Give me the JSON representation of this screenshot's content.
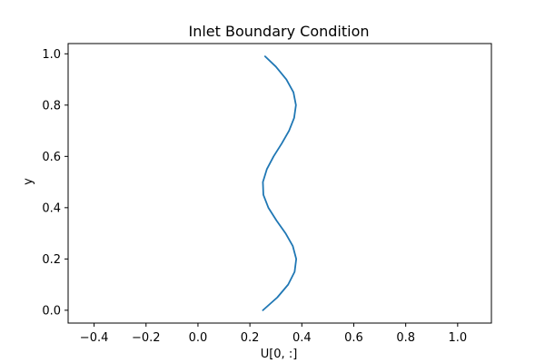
{
  "chart_data": {
    "type": "line",
    "title": "Inlet Boundary Condition",
    "xlabel": "U[0, :]",
    "ylabel": "y",
    "xlim": [
      -0.5,
      1.13
    ],
    "ylim": [
      -0.05,
      1.04
    ],
    "x_ticks": [
      -0.4,
      -0.2,
      0.0,
      0.2,
      0.4,
      0.6,
      0.8,
      1.0
    ],
    "x_tick_labels": [
      "−0.4",
      "−0.2",
      "0.0",
      "0.2",
      "0.4",
      "0.6",
      "0.8",
      "1.0"
    ],
    "y_ticks": [
      0.0,
      0.2,
      0.4,
      0.6,
      0.8,
      1.0
    ],
    "y_tick_labels": [
      "0.0",
      "0.2",
      "0.4",
      "0.6",
      "0.8",
      "1.0"
    ],
    "grid": false,
    "legend": false,
    "series": [
      {
        "color": "#1f77b4",
        "y": [
          0.0,
          0.05,
          0.1,
          0.15,
          0.2,
          0.25,
          0.3,
          0.35,
          0.4,
          0.45,
          0.5,
          0.55,
          0.6,
          0.65,
          0.7,
          0.75,
          0.8,
          0.85,
          0.9,
          0.95,
          0.99
        ],
        "x": [
          0.25,
          0.3055,
          0.3472,
          0.3722,
          0.3784,
          0.3653,
          0.3373,
          0.3024,
          0.2711,
          0.2519,
          0.25,
          0.2652,
          0.2913,
          0.3225,
          0.3508,
          0.3703,
          0.3773,
          0.3677,
          0.3405,
          0.3,
          0.2585
        ]
      }
    ]
  }
}
